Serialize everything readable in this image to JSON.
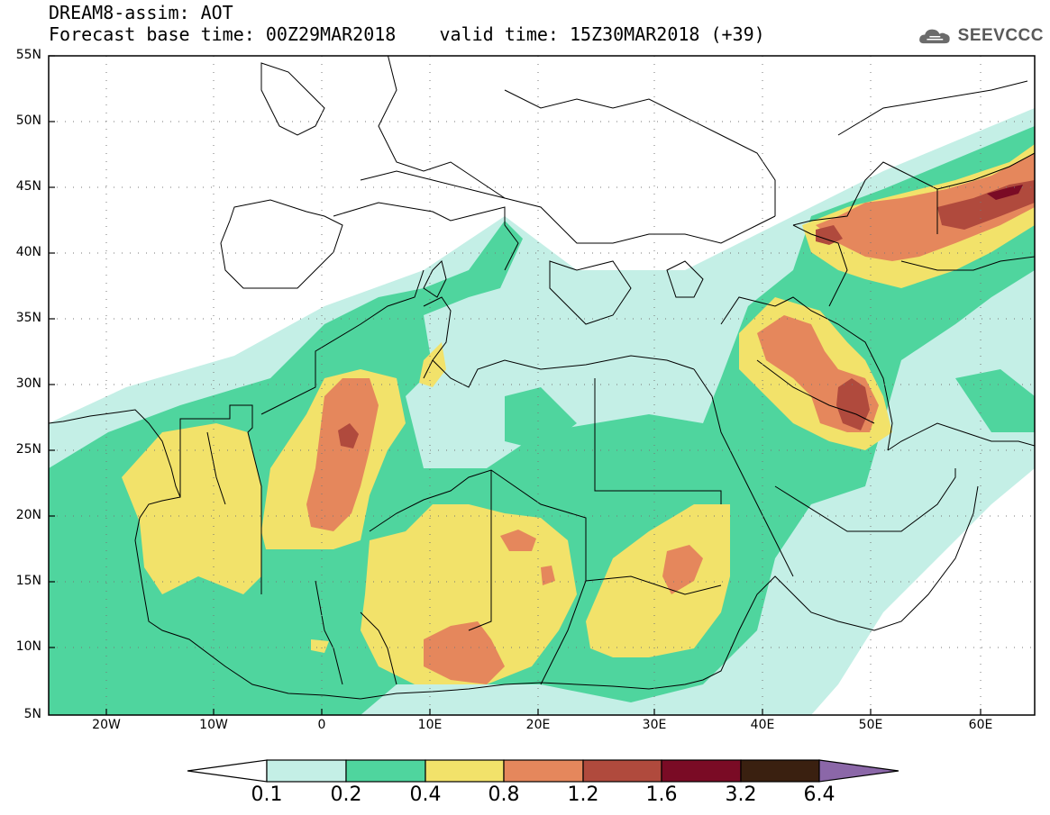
{
  "header": {
    "line1": "DREAM8-assim: AOT",
    "line2_base": "Forecast base time: 00Z29MAR2018",
    "line2_valid": "valid time: 15Z30MAR2018 (+39)"
  },
  "logo": {
    "text": "SEEVCCC",
    "icon": "cloud-icon"
  },
  "map": {
    "lat_labels": [
      "55N",
      "50N",
      "45N",
      "40N",
      "35N",
      "30N",
      "25N",
      "20N",
      "15N",
      "10N",
      "5N"
    ],
    "lon_labels": [
      "20W",
      "10W",
      "0",
      "10E",
      "20E",
      "30E",
      "40E",
      "50E",
      "60E"
    ],
    "background": "#ffffff",
    "border_color": "#000000"
  },
  "colorbar": {
    "labels": [
      "0.1",
      "0.2",
      "0.4",
      "0.8",
      "1.2",
      "1.6",
      "3.2",
      "6.4"
    ],
    "colors": [
      "#ffffff",
      "#c4efe6",
      "#4fd59e",
      "#f2e26a",
      "#e5875c",
      "#b04a3d",
      "#7a0b25",
      "#3a2010",
      "#8b67a8"
    ]
  }
}
